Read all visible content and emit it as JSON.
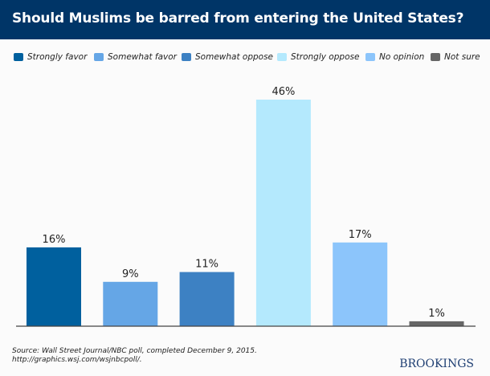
{
  "header": {
    "title": "Should Muslims be barred from entering the United States?"
  },
  "footer": {
    "source_line1": "Source: Wall Street Journal/NBC poll, completed December 9, 2015.",
    "source_line2": "http://graphics.wsj.com/wsjnbcpoll/.",
    "logo": "BROOKINGS"
  },
  "colors": {
    "header_bg": "#003567",
    "baseline": "#444444"
  },
  "chart_data": {
    "type": "bar",
    "title": "Should Muslims be barred from entering the United States?",
    "xlabel": "",
    "ylabel": "",
    "ylim": [
      0,
      46
    ],
    "grid": false,
    "legend_position": "top",
    "categories": [
      "Strongly favor",
      "Somewhat favor",
      "Somewhat oppose",
      "Strongly oppose",
      "No opinion",
      "Not sure"
    ],
    "values": [
      16,
      9,
      11,
      46,
      17,
      1
    ],
    "data_labels": [
      "16%",
      "9%",
      "11%",
      "46%",
      "17%",
      "1%"
    ],
    "colors": [
      "#00609e",
      "#65a6e6",
      "#3d81c3",
      "#b4e9fd",
      "#8cc5fb",
      "#666666"
    ],
    "legend": [
      {
        "label": "Strongly favor",
        "color": "#00609e"
      },
      {
        "label": "Somewhat favor",
        "color": "#65a6e6"
      },
      {
        "label": "Somewhat oppose",
        "color": "#3d81c3"
      },
      {
        "label": "Strongly oppose",
        "color": "#b4e9fd"
      },
      {
        "label": "No opinion",
        "color": "#8cc5fb"
      },
      {
        "label": "Not sure",
        "color": "#666666"
      }
    ]
  }
}
